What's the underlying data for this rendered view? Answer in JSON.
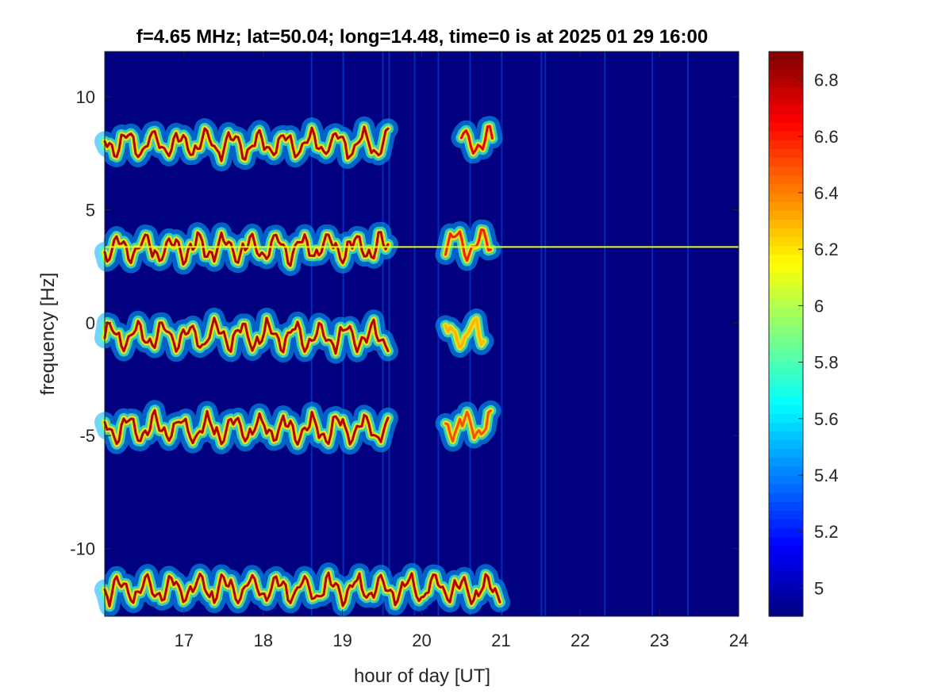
{
  "chart_data": {
    "type": "heatmap",
    "title": "f=4.65 MHz;  lat=50.04; long=14.48, time=0 is at 2025 01 29 16:00",
    "xlabel": "hour of day [UT]",
    "ylabel": "frequency [Hz]",
    "xlim": [
      16.0,
      24.0
    ],
    "ylim": [
      -13.0,
      12.0
    ],
    "x_ticks": [
      17,
      18,
      19,
      20,
      21,
      22,
      23,
      24
    ],
    "x_tick_labels": [
      "17",
      "18",
      "19",
      "20",
      "21",
      "22",
      "23",
      "24"
    ],
    "y_ticks": [
      10,
      5,
      0,
      -5,
      -10
    ],
    "y_tick_labels": [
      "10",
      "5",
      "0",
      "-5",
      "-10"
    ],
    "colorbar": {
      "limits": [
        4.9,
        6.9
      ],
      "ticks": [
        6.8,
        6.6,
        6.4,
        6.2,
        6.0,
        5.8,
        5.6,
        5.4,
        5.2,
        5.0
      ],
      "tick_labels": [
        "6.8",
        "6.6",
        "6.4",
        "6.2",
        "6",
        "5.8",
        "5.6",
        "5.4",
        "5.2",
        "5"
      ],
      "colormap": "jet"
    },
    "background_value": 4.9,
    "colors": {
      "background": "#00008f",
      "frame": "#262626",
      "figure_bg": "#ffffff"
    },
    "traces": [
      {
        "center_hz": 7.9,
        "x_range": [
          16.0,
          19.6
        ],
        "strength": 6.8
      },
      {
        "center_hz": 8.0,
        "x_range": [
          20.5,
          20.9
        ],
        "strength": 6.7
      },
      {
        "center_hz": 3.3,
        "x_range": [
          16.0,
          19.6
        ],
        "strength": 6.8
      },
      {
        "center_hz": 3.5,
        "x_range": [
          20.3,
          20.9
        ],
        "strength": 6.6
      },
      {
        "center_hz": -0.6,
        "x_range": [
          16.0,
          19.6
        ],
        "strength": 6.8
      },
      {
        "center_hz": -0.5,
        "x_range": [
          20.3,
          20.8
        ],
        "strength": 6.3
      },
      {
        "center_hz": -4.7,
        "x_range": [
          16.0,
          19.6
        ],
        "strength": 6.8
      },
      {
        "center_hz": -4.6,
        "x_range": [
          20.3,
          20.9
        ],
        "strength": 6.5
      },
      {
        "center_hz": -11.8,
        "x_range": [
          16.0,
          21.0
        ],
        "strength": 6.8
      }
    ],
    "horizontal_line": {
      "y_hz": 3.35,
      "x_range": [
        16.0,
        24.0
      ]
    },
    "vertical_streaks_hours": [
      18.6,
      19.0,
      19.5,
      19.58,
      19.9,
      20.2,
      20.6,
      21.0,
      21.5,
      21.55,
      22.3,
      22.9,
      23.35
    ]
  }
}
